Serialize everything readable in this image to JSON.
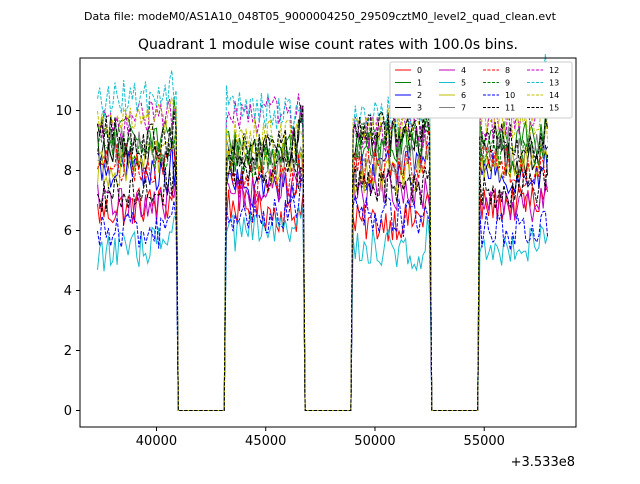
{
  "suptitle": "Data file: modeM0/AS1A10_048T05_9000004250_29509cztM0_level2_quad_clean.evt",
  "chart_data": {
    "type": "line",
    "title": "Quadrant 1 module wise count rates with 100.0s bins.",
    "xlabel": "",
    "ylabel": "",
    "x_offset_label": "+3.533e8",
    "xlim": [
      36500,
      59200
    ],
    "ylim": [
      -0.55,
      11.75
    ],
    "xticks": [
      40000,
      45000,
      50000,
      55000
    ],
    "xtick_labels": [
      "40000",
      "45000",
      "50000",
      "55000"
    ],
    "yticks": [
      0,
      2,
      4,
      6,
      8,
      10
    ],
    "ytick_labels": [
      "0",
      "2",
      "4",
      "6",
      "8",
      "10"
    ],
    "bin_seconds": 100,
    "x_start": 37300,
    "x_end": 57900,
    "good_intervals": [
      [
        37300,
        40900
      ],
      [
        43200,
        46700
      ],
      [
        49000,
        52500
      ],
      [
        54800,
        57900
      ]
    ],
    "legend_position": "top-right",
    "legend_columns": 4,
    "series": [
      {
        "name": "0",
        "color": "#ff0000",
        "dash": "solid",
        "mean": 6.6
      },
      {
        "name": "1",
        "color": "#008000",
        "dash": "solid",
        "mean": 8.9
      },
      {
        "name": "2",
        "color": "#0000ff",
        "dash": "solid",
        "mean": 7.8
      },
      {
        "name": "3",
        "color": "#000000",
        "dash": "solid",
        "mean": 8.7
      },
      {
        "name": "4",
        "color": "#bf00bf",
        "dash": "solid",
        "mean": 7.2
      },
      {
        "name": "5",
        "color": "#17becf",
        "dash": "solid",
        "mean": 5.6
      },
      {
        "name": "6",
        "color": "#bfbf00",
        "dash": "solid",
        "mean": 8.1
      },
      {
        "name": "7",
        "color": "#808080",
        "dash": "solid",
        "mean": 8.5
      },
      {
        "name": "8",
        "color": "#ff0000",
        "dash": "dashed",
        "mean": 8.0
      },
      {
        "name": "9",
        "color": "#008000",
        "dash": "dashed",
        "mean": 8.7
      },
      {
        "name": "10",
        "color": "#0000ff",
        "dash": "dashed",
        "mean": 6.3
      },
      {
        "name": "11",
        "color": "#000000",
        "dash": "dashed",
        "mean": 7.6
      },
      {
        "name": "12",
        "color": "#bf00bf",
        "dash": "dashed",
        "mean": 9.6
      },
      {
        "name": "13",
        "color": "#17becf",
        "dash": "dashed",
        "mean": 10.1
      },
      {
        "name": "14",
        "color": "#bfbf00",
        "dash": "dashed",
        "mean": 9.4
      },
      {
        "name": "15",
        "color": "#000000",
        "dash": "dashed",
        "mean": 9.0
      }
    ]
  }
}
